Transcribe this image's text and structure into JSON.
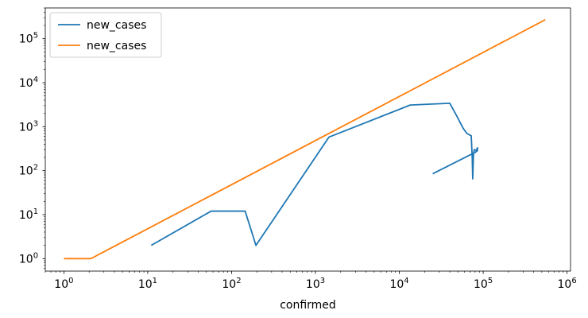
{
  "chart_data": {
    "type": "line",
    "xscale": "log",
    "yscale": "log",
    "xlabel": "confirmed",
    "ylabel": "",
    "xlim": [
      0.6,
      1100000
    ],
    "ylim": [
      0.52,
      500000
    ],
    "grid": false,
    "legend_position": "top-left",
    "x_ticks": [
      {
        "value": 1,
        "base": "10",
        "exp": "0"
      },
      {
        "value": 10,
        "base": "10",
        "exp": "1"
      },
      {
        "value": 100,
        "base": "10",
        "exp": "2"
      },
      {
        "value": 1000,
        "base": "10",
        "exp": "3"
      },
      {
        "value": 10000,
        "base": "10",
        "exp": "4"
      },
      {
        "value": 100000,
        "base": "10",
        "exp": "5"
      },
      {
        "value": 1000000,
        "base": "10",
        "exp": "6"
      }
    ],
    "y_ticks": [
      {
        "value": 1,
        "base": "10",
        "exp": "0"
      },
      {
        "value": 10,
        "base": "10",
        "exp": "1"
      },
      {
        "value": 100,
        "base": "10",
        "exp": "2"
      },
      {
        "value": 1000,
        "base": "10",
        "exp": "3"
      },
      {
        "value": 10000,
        "base": "10",
        "exp": "4"
      },
      {
        "value": 100000,
        "base": "10",
        "exp": "5"
      }
    ],
    "series": [
      {
        "name": "new_cases",
        "color": "#1f77b4",
        "points": [
          [
            11,
            2
          ],
          [
            57,
            12
          ],
          [
            145,
            12
          ],
          [
            195,
            2
          ],
          [
            1450,
            580
          ],
          [
            13500,
            3100
          ],
          [
            40000,
            3400
          ],
          [
            48000,
            1800
          ],
          [
            58000,
            900
          ],
          [
            64000,
            700
          ],
          [
            72000,
            620
          ],
          [
            74000,
            200
          ],
          [
            75000,
            65
          ],
          [
            76500,
            220
          ],
          [
            78000,
            300
          ],
          [
            82000,
            290
          ],
          [
            86000,
            330
          ],
          [
            85000,
            280
          ],
          [
            80000,
            260
          ],
          [
            25000,
            85
          ]
        ]
      },
      {
        "name": "new_cases",
        "color": "#ff7f0e",
        "points": [
          [
            1,
            1
          ],
          [
            2.1,
            1
          ],
          [
            550000,
            270000
          ]
        ]
      }
    ]
  }
}
